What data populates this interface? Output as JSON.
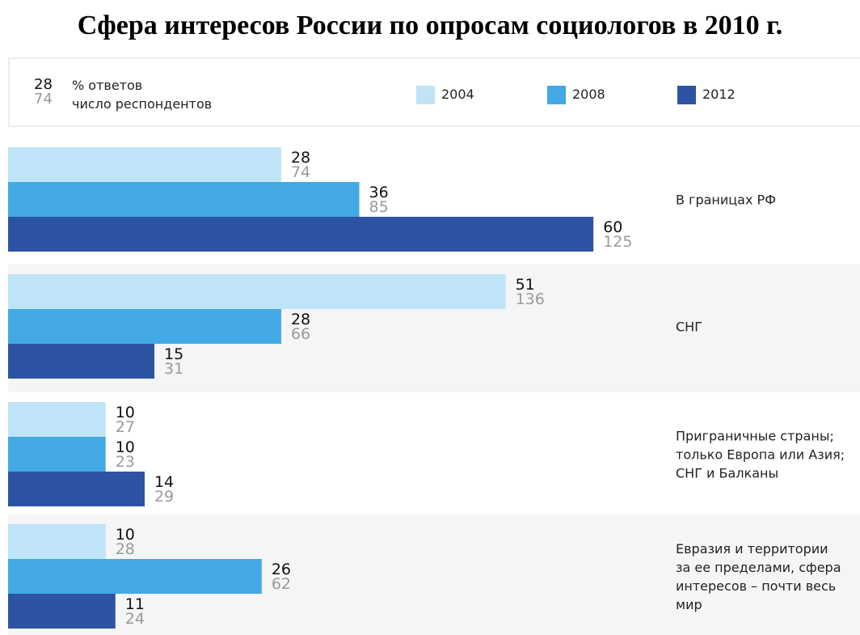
{
  "title": "Сфера интересов России по опросам социологов в 2010 г.",
  "legend": {
    "key_value_top": "28",
    "key_value_bottom": "74",
    "key_label_top": "% ответов",
    "key_label_bottom": "число респондентов",
    "series": [
      {
        "name": "2004",
        "color": "#bfe3f7"
      },
      {
        "name": "2008",
        "color": "#43a9e4"
      },
      {
        "name": "2012",
        "color": "#2d53a3"
      }
    ]
  },
  "chart_data": {
    "type": "bar",
    "orientation": "horizontal",
    "categories": [
      [
        "В границах РФ"
      ],
      [
        "СНГ"
      ],
      [
        "Приграничные страны;",
        "только Европа или Азия;",
        "СНГ и Балканы"
      ],
      [
        "Евразия и территории",
        "за ее пределами, сфера",
        "интересов – почти весь",
        "мир"
      ]
    ],
    "series": [
      {
        "name": "2004",
        "color": "#bfe3f7",
        "values": [
          28,
          51,
          10,
          10
        ],
        "respondents": [
          74,
          136,
          27,
          28
        ]
      },
      {
        "name": "2008",
        "color": "#43a9e4",
        "values": [
          36,
          28,
          10,
          26
        ],
        "respondents": [
          85,
          66,
          23,
          62
        ]
      },
      {
        "name": "2012",
        "color": "#2d53a3",
        "values": [
          60,
          15,
          14,
          11
        ],
        "respondents": [
          125,
          31,
          29,
          24
        ]
      }
    ],
    "group_backgrounds": [
      "#ffffff",
      "#f5f5f5",
      "#ffffff",
      "#f5f5f5"
    ]
  }
}
